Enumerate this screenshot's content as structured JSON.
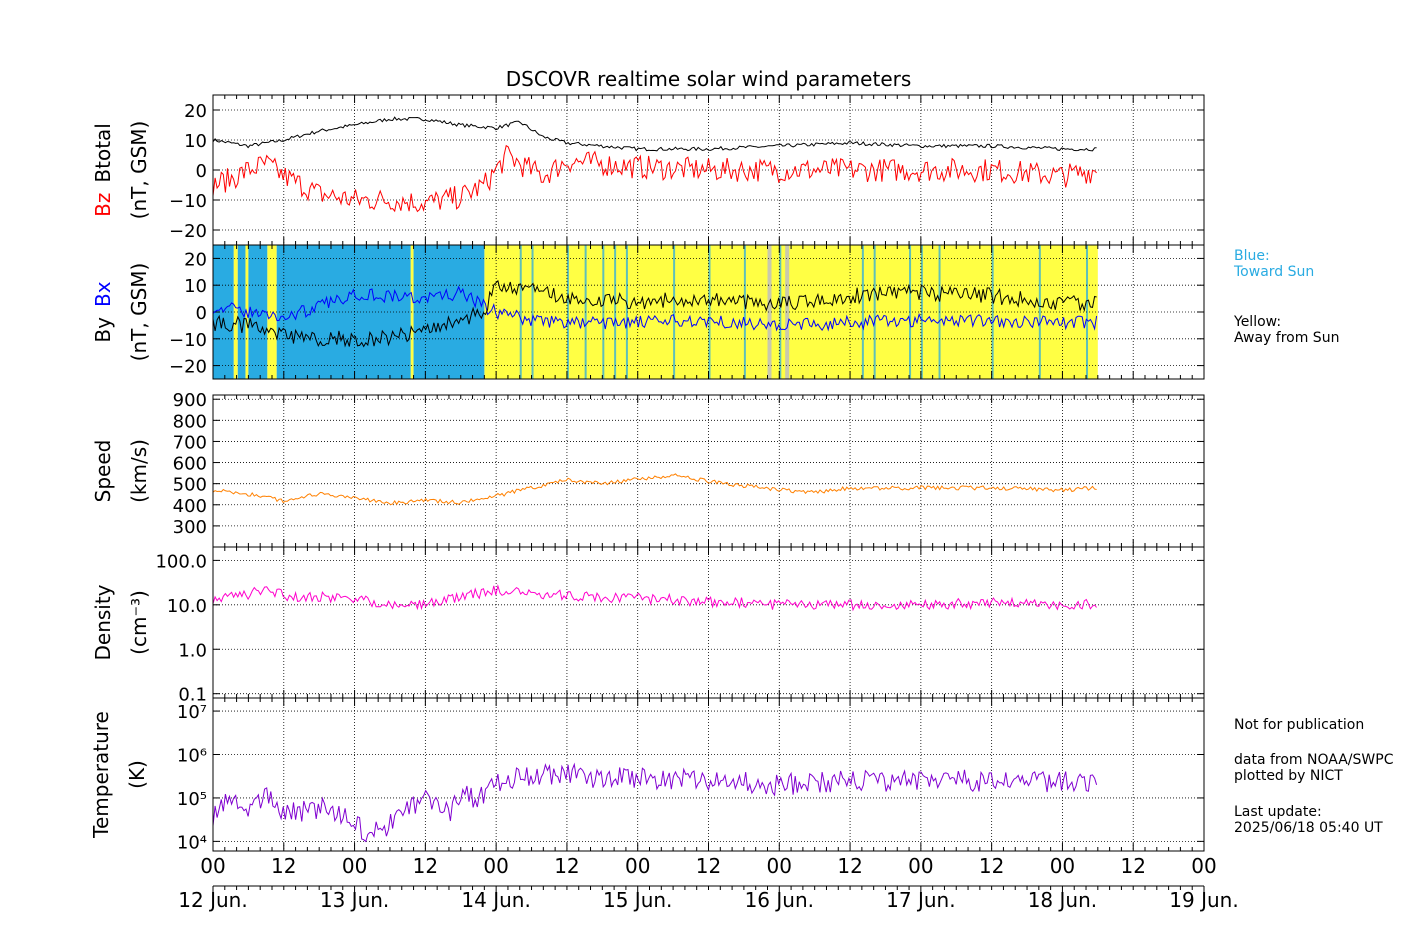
{
  "title": "DSCOVR realtime solar wind parameters",
  "colors": {
    "bz": "#ff0000",
    "btotal": "#000000",
    "bx": "#0000ff",
    "by": "#000000",
    "speed": "#ff8000",
    "density": "#ff00cc",
    "temperature": "#8000d0",
    "toward_sun": "#29abe2",
    "away_from_sun": "#ffff44",
    "gap": "#c0c0c0"
  },
  "time_axis": {
    "hour_labels": [
      "00",
      "12",
      "00",
      "12",
      "00",
      "12",
      "00",
      "12",
      "00",
      "12",
      "00",
      "12",
      "00",
      "12",
      "00"
    ],
    "date_labels": [
      "12 Jun.",
      "13 Jun.",
      "14 Jun.",
      "15 Jun.",
      "16 Jun.",
      "17 Jun.",
      "18 Jun.",
      "19 Jun."
    ],
    "start": "2025-06-12 00:00 UT",
    "end": "2025-06-19 00:00 UT",
    "data_end": "2025-06-18 05:40 UT"
  },
  "legend": {
    "blue": "Blue:\nToward Sun",
    "yellow": "Yellow:\nAway from Sun"
  },
  "notes": {
    "publication": "Not for publication",
    "source": "data from NOAA/SWPC\nplotted by NICT",
    "update": "Last update:\n2025/06/18 05:40 UT"
  },
  "chart_data": [
    {
      "type": "line",
      "panel": "magnetic_field_btotal_bz",
      "ylabel_parts": [
        "Bz",
        "Btotal"
      ],
      "ylabel_unit": "(nT, GSM)",
      "ylim": [
        -25,
        25
      ],
      "yticks": [
        "20",
        "10",
        "0",
        "−10",
        "−20"
      ],
      "x_unit": "hours since 12 Jun. 00:00 UT",
      "series": [
        {
          "name": "Btotal",
          "x": [
            0,
            3,
            6,
            9,
            12,
            18,
            24,
            30,
            36,
            42,
            48,
            52,
            56,
            60,
            66,
            72,
            84,
            96,
            108,
            120,
            132,
            144,
            150
          ],
          "values": [
            10,
            9,
            8,
            9,
            10,
            13,
            15,
            17,
            17,
            15,
            14,
            16,
            11,
            9,
            8,
            7,
            7,
            8,
            9,
            8,
            8,
            7,
            7
          ]
        },
        {
          "name": "Bz",
          "x": [
            0,
            3,
            6,
            9,
            12,
            18,
            24,
            30,
            36,
            42,
            46,
            48,
            50,
            52,
            56,
            60,
            66,
            72,
            84,
            96,
            108,
            120,
            132,
            144,
            150
          ],
          "values": [
            -5,
            -3,
            0,
            2,
            -2,
            -8,
            -10,
            -10,
            -11,
            -9,
            -5,
            0,
            5,
            2,
            -2,
            3,
            2,
            1,
            0,
            0,
            0,
            0,
            0,
            -2,
            0
          ]
        }
      ]
    },
    {
      "type": "line",
      "panel": "magnetic_field_bx_by",
      "ylabel_parts": [
        "By",
        "Bx"
      ],
      "ylabel_unit": "(nT, GSM)",
      "ylim": [
        -25,
        25
      ],
      "yticks": [
        "20",
        "10",
        "0",
        "−10",
        "−20"
      ],
      "x_unit": "hours since 12 Jun. 00:00 UT",
      "sector_background": {
        "toward_sun_intervals": [
          [
            0,
            3.5
          ],
          [
            4.2,
            5.5
          ],
          [
            6.0,
            9.2
          ],
          [
            10.8,
            33.5
          ],
          [
            34.0,
            46
          ]
        ],
        "away_from_sun_intervals": [
          [
            3.5,
            4.2
          ],
          [
            5.5,
            6.0
          ],
          [
            9.2,
            10.8
          ],
          [
            33.5,
            34.0
          ],
          [
            46,
            150
          ]
        ]
      },
      "series": [
        {
          "name": "Bx",
          "x": [
            0,
            6,
            12,
            18,
            24,
            30,
            36,
            42,
            46,
            48,
            54,
            60,
            72,
            84,
            96,
            108,
            120,
            132,
            144,
            150
          ],
          "values": [
            2,
            0,
            -2,
            2,
            7,
            6,
            5,
            7,
            2,
            0,
            -3,
            -4,
            -4,
            -3,
            -5,
            -4,
            -3,
            -3,
            -4,
            -4
          ]
        },
        {
          "name": "By",
          "x": [
            0,
            6,
            12,
            18,
            24,
            30,
            36,
            42,
            46,
            48,
            54,
            60,
            72,
            84,
            96,
            108,
            120,
            132,
            144,
            150
          ],
          "values": [
            -4,
            -5,
            -9,
            -10,
            -10,
            -10,
            -6,
            -3,
            0,
            10,
            8,
            5,
            4,
            5,
            3,
            6,
            7,
            6,
            3,
            4
          ]
        }
      ]
    },
    {
      "type": "line",
      "panel": "speed",
      "ylabel": "Speed",
      "ylabel_unit": "(km/s)",
      "ylim": [
        200,
        920
      ],
      "yticks": [
        "900",
        "800",
        "700",
        "600",
        "500",
        "400",
        "300"
      ],
      "x_unit": "hours since 12 Jun. 00:00 UT",
      "series": [
        {
          "name": "Speed",
          "x": [
            0,
            6,
            12,
            18,
            24,
            30,
            36,
            42,
            46,
            54,
            60,
            66,
            72,
            78,
            84,
            96,
            102,
            108,
            120,
            132,
            144,
            150
          ],
          "values": [
            470,
            450,
            420,
            450,
            430,
            410,
            420,
            410,
            430,
            480,
            520,
            500,
            520,
            540,
            510,
            470,
            460,
            480,
            480,
            480,
            470,
            480
          ]
        }
      ]
    },
    {
      "type": "line",
      "panel": "density",
      "ylabel": "Density",
      "ylabel_unit": "(cm⁻³)",
      "yscale": "log",
      "ylim": [
        0.08,
        200
      ],
      "yticks": [
        "100.0",
        "10.0",
        "1.0",
        "0.1"
      ],
      "x_unit": "hours since 12 Jun. 00:00 UT",
      "series": [
        {
          "name": "Density",
          "x": [
            0,
            6,
            9,
            12,
            18,
            24,
            30,
            36,
            42,
            48,
            54,
            60,
            72,
            84,
            96,
            108,
            120,
            132,
            144,
            150
          ],
          "values": [
            14,
            17,
            22,
            16,
            15,
            14,
            10,
            10,
            15,
            22,
            17,
            16,
            14,
            12,
            10,
            10,
            10,
            11,
            10,
            10
          ]
        }
      ]
    },
    {
      "type": "line",
      "panel": "temperature",
      "ylabel": "Temperature",
      "ylabel_unit": "(K)",
      "yscale": "log",
      "ylim": [
        6000,
        20000000
      ],
      "yticks": [
        "10⁷",
        "10⁶",
        "10⁵",
        "10⁴"
      ],
      "x_unit": "hours since 12 Jun. 00:00 UT",
      "series": [
        {
          "name": "Temperature",
          "x": [
            0,
            3,
            6,
            9,
            12,
            18,
            24,
            26,
            30,
            36,
            40,
            42,
            46,
            48,
            54,
            60,
            66,
            72,
            84,
            96,
            108,
            120,
            132,
            144,
            150
          ],
          "values": [
            40000,
            90000,
            60000,
            120000,
            40000,
            60000,
            30000,
            12000,
            25000,
            120000,
            40000,
            110000,
            100000,
            250000,
            320000,
            350000,
            280000,
            300000,
            250000,
            200000,
            250000,
            250000,
            250000,
            230000,
            230000
          ]
        }
      ]
    }
  ]
}
